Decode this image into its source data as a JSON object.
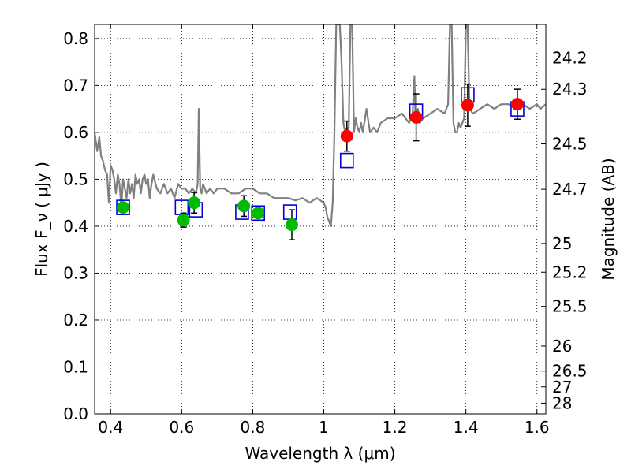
{
  "chart_data": {
    "type": "scatter",
    "title": "",
    "xlabel": "Wavelength  λ (μm)",
    "ylabel": "Flux  F_ν  ( μJy )",
    "y2label": "Magnitude (AB)",
    "xlim": [
      0.355,
      1.625
    ],
    "ylim": [
      0.0,
      0.83
    ],
    "x_ticks": [
      0.4,
      0.6,
      0.8,
      1.0,
      1.2,
      1.4,
      1.6
    ],
    "x_tick_labels": [
      "0.4",
      "0.6",
      "0.8",
      "1",
      "1.2",
      "1.4",
      "1.6"
    ],
    "y_ticks": [
      0.0,
      0.1,
      0.2,
      0.3,
      0.4,
      0.5,
      0.6,
      0.7,
      0.8
    ],
    "y_tick_labels": [
      "0.0",
      "0.1",
      "0.2",
      "0.3",
      "0.4",
      "0.5",
      "0.6",
      "0.7",
      "0.8"
    ],
    "y2_ticks": [
      24.2,
      24.3,
      24.5,
      24.7,
      25,
      25.2,
      25.5,
      26,
      26.5,
      27,
      28
    ],
    "y2_tick_labels": [
      "24.2",
      "24.3",
      "24.5",
      "24.7",
      "25",
      "25.2",
      "25.5",
      "26",
      "26.5",
      "27",
      "28"
    ],
    "grid": true,
    "colors": {
      "model": "#808080",
      "optical_points": "#00bb00",
      "nir_points": "#ff0000",
      "model_boxes": "#0000dd",
      "errorbars": "#000000"
    },
    "series": [
      {
        "marker": "line",
        "x": [
          0.355,
          0.362,
          0.368,
          0.373,
          0.378,
          0.384,
          0.39,
          0.395,
          0.4,
          0.405,
          0.41,
          0.415,
          0.42,
          0.425,
          0.43,
          0.435,
          0.44,
          0.445,
          0.45,
          0.455,
          0.46,
          0.465,
          0.47,
          0.475,
          0.48,
          0.485,
          0.49,
          0.495,
          0.5,
          0.505,
          0.51,
          0.515,
          0.52,
          0.53,
          0.54,
          0.55,
          0.56,
          0.57,
          0.58,
          0.59,
          0.6,
          0.61,
          0.62,
          0.63,
          0.64,
          0.645,
          0.648,
          0.652,
          0.656,
          0.66,
          0.67,
          0.68,
          0.69,
          0.7,
          0.72,
          0.74,
          0.76,
          0.78,
          0.8,
          0.82,
          0.84,
          0.86,
          0.88,
          0.9,
          0.92,
          0.94,
          0.96,
          0.98,
          1.0,
          1.005,
          1.01,
          1.015,
          1.02,
          1.025,
          1.03,
          1.035,
          1.04,
          1.045,
          1.05,
          1.055,
          1.06,
          1.065,
          1.07,
          1.075,
          1.08,
          1.085,
          1.09,
          1.095,
          1.1,
          1.105,
          1.11,
          1.12,
          1.13,
          1.14,
          1.15,
          1.16,
          1.18,
          1.2,
          1.22,
          1.24,
          1.25,
          1.255,
          1.258,
          1.262,
          1.265,
          1.27,
          1.28,
          1.3,
          1.32,
          1.34,
          1.35,
          1.355,
          1.36,
          1.365,
          1.37,
          1.375,
          1.38,
          1.385,
          1.39,
          1.395,
          1.4,
          1.405,
          1.41,
          1.42,
          1.44,
          1.46,
          1.48,
          1.5,
          1.52,
          1.54,
          1.56,
          1.58,
          1.6,
          1.61,
          1.625
        ],
        "y": [
          0.6,
          0.56,
          0.59,
          0.55,
          0.54,
          0.52,
          0.51,
          0.45,
          0.53,
          0.52,
          0.5,
          0.47,
          0.51,
          0.49,
          0.44,
          0.5,
          0.48,
          0.46,
          0.5,
          0.47,
          0.49,
          0.46,
          0.51,
          0.49,
          0.5,
          0.47,
          0.5,
          0.51,
          0.49,
          0.5,
          0.46,
          0.49,
          0.51,
          0.48,
          0.47,
          0.49,
          0.47,
          0.48,
          0.46,
          0.49,
          0.48,
          0.48,
          0.47,
          0.48,
          0.47,
          0.49,
          0.65,
          0.48,
          0.47,
          0.49,
          0.47,
          0.48,
          0.47,
          0.48,
          0.48,
          0.47,
          0.47,
          0.48,
          0.48,
          0.47,
          0.47,
          0.46,
          0.46,
          0.46,
          0.455,
          0.46,
          0.45,
          0.46,
          0.45,
          0.44,
          0.42,
          0.41,
          0.4,
          0.45,
          0.6,
          0.83,
          0.83,
          0.83,
          0.75,
          0.62,
          0.6,
          0.61,
          0.6,
          0.83,
          0.83,
          0.6,
          0.63,
          0.61,
          0.6,
          0.62,
          0.6,
          0.65,
          0.6,
          0.61,
          0.6,
          0.62,
          0.63,
          0.63,
          0.64,
          0.62,
          0.64,
          0.72,
          0.63,
          0.64,
          0.65,
          0.62,
          0.63,
          0.64,
          0.65,
          0.64,
          0.66,
          0.83,
          0.83,
          0.62,
          0.6,
          0.6,
          0.62,
          0.61,
          0.62,
          0.63,
          0.83,
          0.83,
          0.65,
          0.64,
          0.65,
          0.66,
          0.65,
          0.66,
          0.66,
          0.65,
          0.66,
          0.65,
          0.66,
          0.65,
          0.66
        ]
      },
      {
        "marker": "square",
        "x": [
          0.435,
          0.6,
          0.64,
          0.77,
          0.815,
          0.905,
          1.065,
          1.26,
          1.405,
          1.545
        ],
        "y": [
          0.44,
          0.44,
          0.435,
          0.43,
          0.428,
          0.43,
          0.54,
          0.645,
          0.68,
          0.65
        ]
      },
      {
        "marker": "circle",
        "x": [
          0.435,
          0.605,
          0.635,
          0.775,
          0.815,
          0.91
        ],
        "y": [
          0.44,
          0.413,
          0.45,
          0.443,
          0.428,
          0.403
        ],
        "yerr": [
          null,
          0.015,
          0.022,
          0.022,
          null,
          0.032
        ]
      },
      {
        "marker": "circle",
        "x": [
          1.065,
          1.26,
          1.405,
          1.545
        ],
        "y": [
          0.592,
          0.632,
          0.658,
          0.66
        ],
        "yerr": [
          0.032,
          0.05,
          0.045,
          0.032
        ]
      }
    ]
  }
}
